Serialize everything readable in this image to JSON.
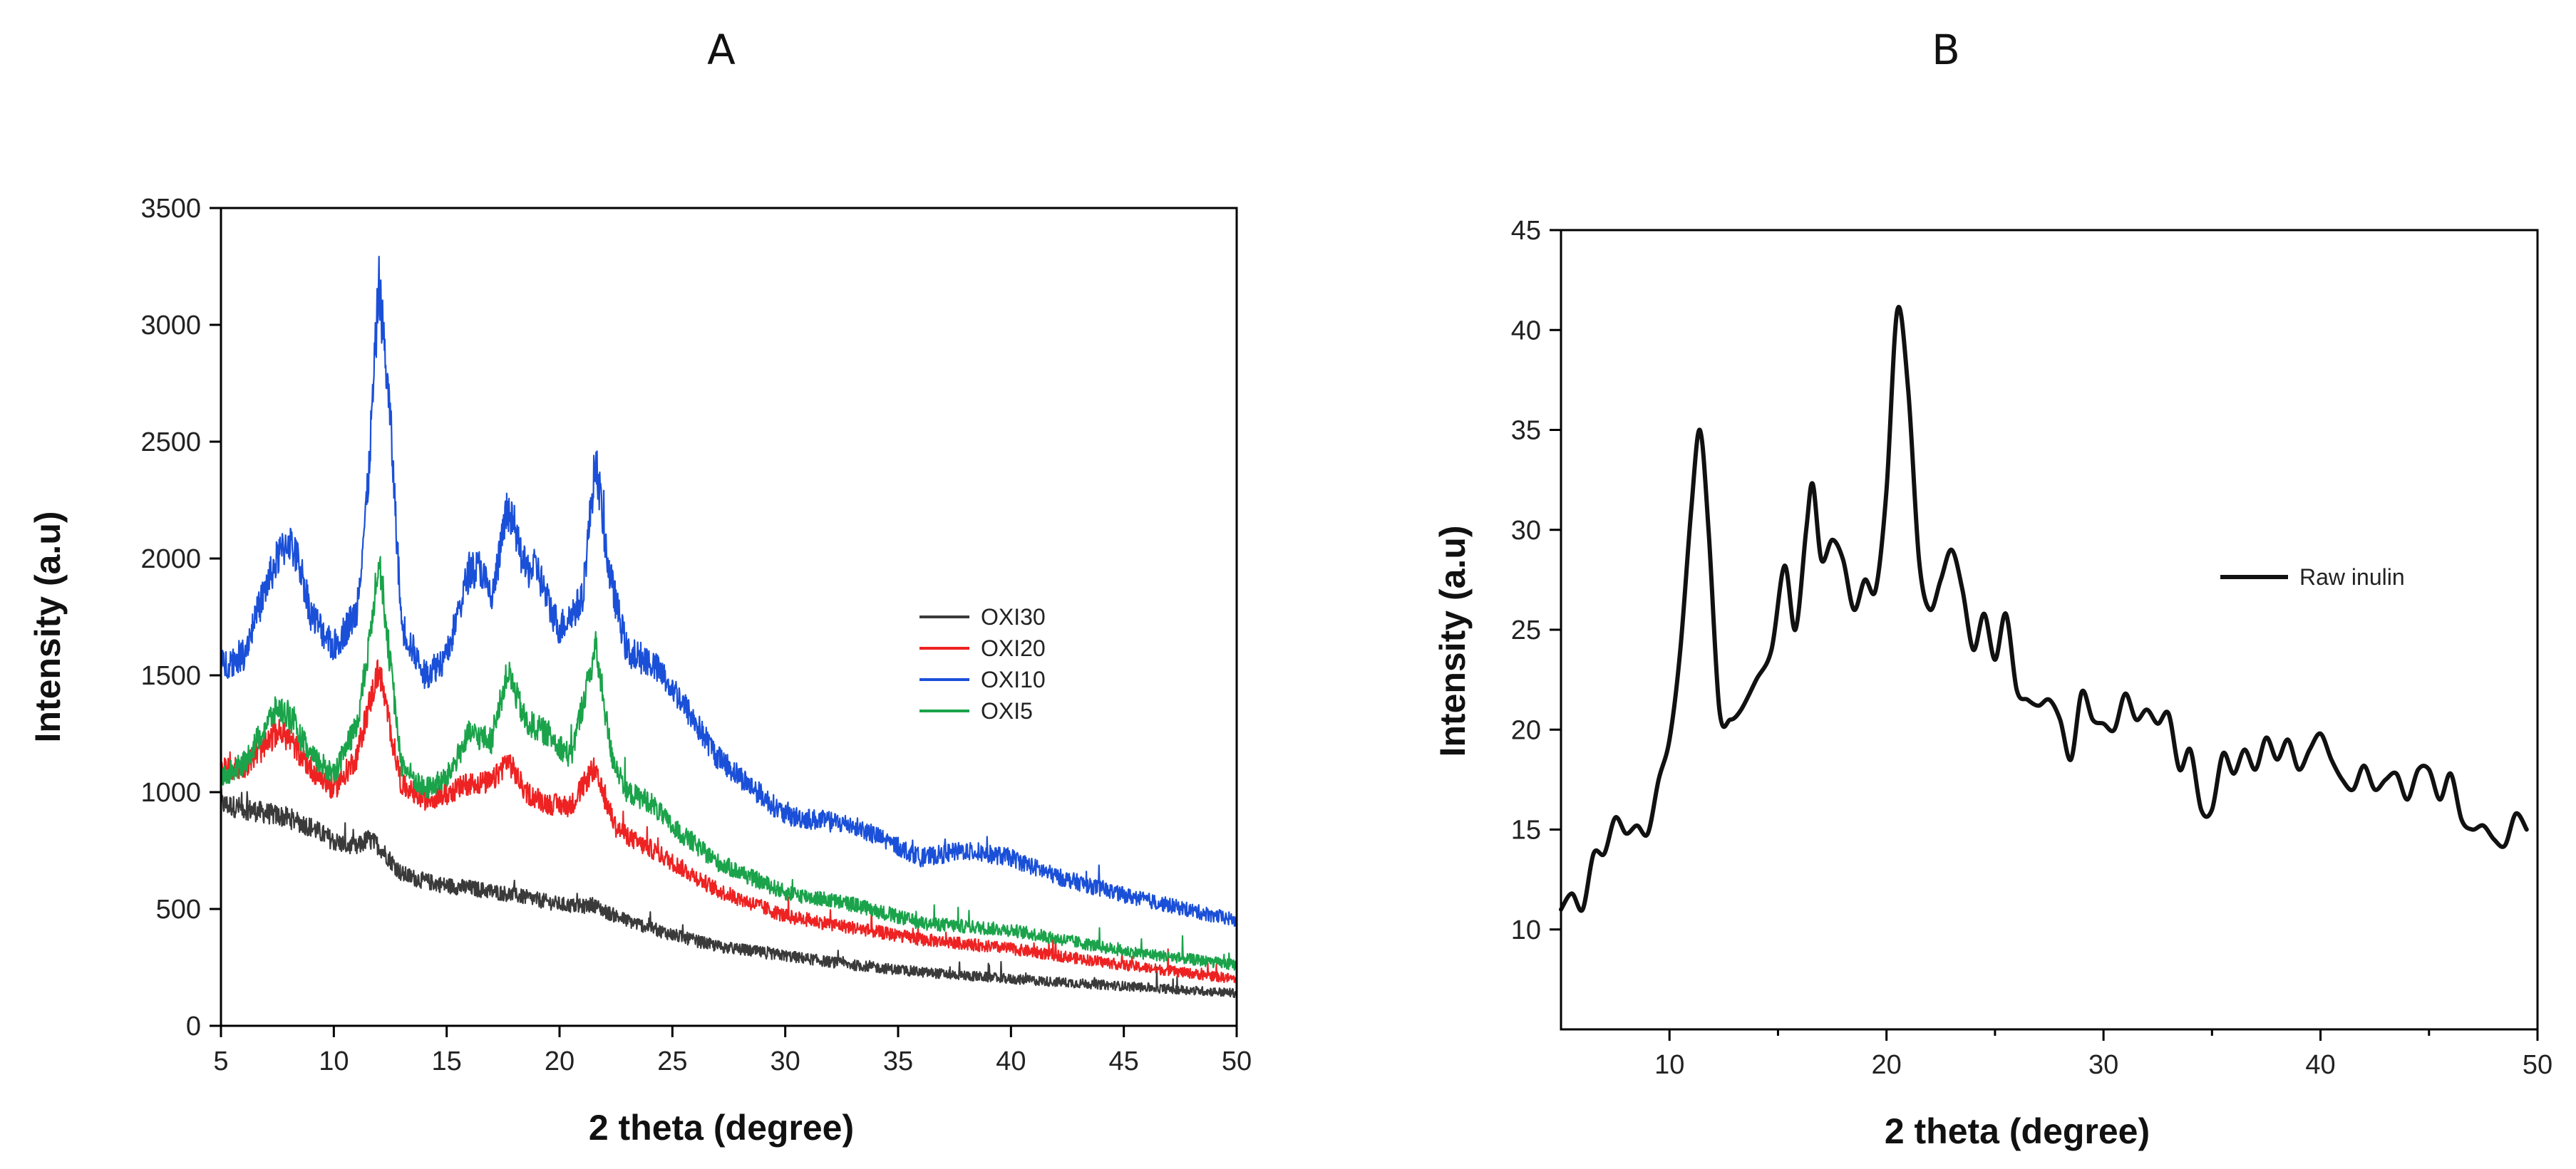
{
  "colors": {
    "OXI30": "#3a3a3a",
    "OXI20": "#ee2222",
    "OXI10": "#1a4fd8",
    "OXI5": "#1aa34a",
    "raw": "#111111"
  },
  "chart_data": [
    {
      "type": "line",
      "title": "A",
      "xlabel": "2 theta (degree)",
      "ylabel": "Intensity (a.u)",
      "xlim": [
        5,
        50
      ],
      "ylim": [
        0,
        3500
      ],
      "xticks": [
        "5",
        "10",
        "15",
        "20",
        "25",
        "30",
        "35",
        "40",
        "45",
        "50"
      ],
      "yticks": [
        "0",
        "500",
        "1000",
        "1500",
        "2000",
        "2500",
        "3000",
        "3500"
      ],
      "grid": false,
      "legend_position": "center-right",
      "series": [
        {
          "name": "OXI30",
          "color": "#3a3a3a",
          "x": [
            5,
            6,
            7,
            8,
            9,
            10,
            11,
            11.5,
            12,
            12.5,
            13,
            14,
            15,
            16,
            17,
            18,
            19,
            20,
            21,
            21.5,
            22,
            23,
            24,
            25,
            27,
            30,
            33,
            36,
            40,
            45,
            50
          ],
          "y": [
            950,
            930,
            910,
            890,
            850,
            790,
            760,
            800,
            770,
            710,
            650,
            620,
            600,
            590,
            575,
            560,
            540,
            520,
            510,
            520,
            490,
            450,
            420,
            390,
            340,
            300,
            260,
            230,
            200,
            170,
            140
          ]
        },
        {
          "name": "OXI20",
          "color": "#ee2222",
          "x": [
            5,
            6,
            7,
            7.5,
            8,
            9,
            10,
            11,
            11.5,
            12,
            12.5,
            13,
            14,
            15,
            16,
            17,
            17.7,
            18.5,
            19.5,
            20.5,
            21.5,
            22.5,
            23.5,
            24,
            25,
            27,
            30,
            33,
            36,
            40,
            45,
            50
          ],
          "y": [
            1090,
            1110,
            1200,
            1260,
            1230,
            1100,
            1010,
            1150,
            1350,
            1530,
            1270,
            1030,
            970,
            990,
            1040,
            1040,
            1140,
            1000,
            950,
            940,
            1100,
            850,
            780,
            760,
            700,
            580,
            470,
            420,
            370,
            330,
            260,
            200
          ]
        },
        {
          "name": "OXI10",
          "color": "#1a4fd8",
          "x": [
            5,
            6,
            7,
            7.5,
            8,
            8.5,
            9,
            10,
            11,
            11.5,
            12,
            12.5,
            13,
            14,
            15,
            16,
            16.5,
            17,
            17.7,
            18.5,
            19,
            19.5,
            20,
            21,
            21.6,
            22.2,
            23,
            24,
            25,
            27,
            30,
            33,
            36,
            38,
            40,
            42,
            45,
            50
          ],
          "y": [
            1540,
            1590,
            1880,
            2000,
            2080,
            1970,
            1760,
            1620,
            1770,
            2290,
            3180,
            2600,
            1720,
            1500,
            1580,
            1950,
            1960,
            1820,
            2220,
            1950,
            1960,
            1810,
            1700,
            1820,
            2430,
            1940,
            1600,
            1560,
            1450,
            1150,
            900,
            860,
            720,
            750,
            720,
            640,
            560,
            450
          ]
        },
        {
          "name": "OXI5",
          "color": "#1aa34a",
          "x": [
            5,
            6,
            7,
            7.5,
            8,
            9,
            10,
            11,
            11.5,
            12,
            12.5,
            13,
            14,
            15,
            16,
            17,
            17.7,
            18.5,
            19.5,
            20.5,
            21.6,
            22.3,
            23,
            24,
            25,
            27,
            30,
            33,
            36,
            40,
            45,
            50
          ],
          "y": [
            1060,
            1120,
            1290,
            1360,
            1330,
            1150,
            1080,
            1280,
            1580,
            2020,
            1550,
            1120,
            1010,
            1060,
            1250,
            1220,
            1520,
            1300,
            1250,
            1150,
            1620,
            1160,
            1000,
            960,
            850,
            700,
            570,
            520,
            440,
            410,
            320,
            260
          ]
        }
      ]
    },
    {
      "type": "line",
      "title": "B",
      "xlabel": "2 theta (degree)",
      "ylabel": "Intensity (a.u)",
      "xlim": [
        5,
        50
      ],
      "ylim": [
        5,
        45
      ],
      "xticks": [
        "10",
        "20",
        "30",
        "40",
        "50"
      ],
      "yticks": [
        "10",
        "15",
        "20",
        "25",
        "30",
        "35",
        "40",
        "45"
      ],
      "grid": false,
      "legend_position": "center-right",
      "series": [
        {
          "name": "Raw inulin",
          "color": "#111111",
          "x": [
            5,
            5.5,
            6,
            6.5,
            7,
            7.5,
            8,
            8.5,
            9,
            9.5,
            10,
            10.5,
            11,
            11.4,
            11.8,
            12.3,
            12.8,
            13.3,
            14,
            14.7,
            15.3,
            15.8,
            16.3,
            16.6,
            17,
            17.5,
            18,
            18.5,
            19,
            19.5,
            20,
            20.5,
            21,
            21.5,
            22,
            22.5,
            23,
            23.5,
            24,
            24.5,
            25,
            25.5,
            26,
            26.5,
            27,
            27.5,
            28,
            28.5,
            29,
            29.5,
            30,
            30.5,
            31,
            31.5,
            32,
            32.5,
            33,
            33.5,
            34,
            34.5,
            35,
            35.5,
            36,
            36.5,
            37,
            37.5,
            38,
            38.5,
            39,
            39.5,
            40,
            40.5,
            41,
            41.5,
            42,
            42.5,
            43,
            43.5,
            44,
            44.5,
            45,
            45.5,
            46,
            46.5,
            47,
            47.5,
            48,
            48.5,
            49,
            49.5
          ],
          "y": [
            11,
            11.8,
            11,
            13.8,
            13.8,
            15.6,
            14.8,
            15.2,
            14.8,
            17.5,
            19.5,
            24,
            31,
            35,
            30,
            21,
            20.5,
            21,
            22.5,
            24,
            28.2,
            25,
            30,
            32.3,
            28.5,
            29.5,
            28.5,
            26,
            27.5,
            27,
            32,
            41,
            37,
            28.5,
            26,
            27.5,
            29,
            27,
            24,
            25.8,
            23.5,
            25.8,
            22,
            21.5,
            21.2,
            21.5,
            20.5,
            18.5,
            21.9,
            20.5,
            20.3,
            20,
            21.8,
            20.5,
            21,
            20.3,
            20.8,
            18,
            19,
            16,
            16,
            18.8,
            17.8,
            19,
            18,
            19.6,
            18.5,
            19.5,
            18,
            19,
            19.8,
            18.5,
            17.5,
            17,
            18.2,
            17,
            17.5,
            17.8,
            16.5,
            18,
            18,
            16.5,
            17.8,
            15.5,
            15,
            15.2,
            14.5,
            14.2,
            15.8,
            15
          ]
        }
      ]
    }
  ]
}
